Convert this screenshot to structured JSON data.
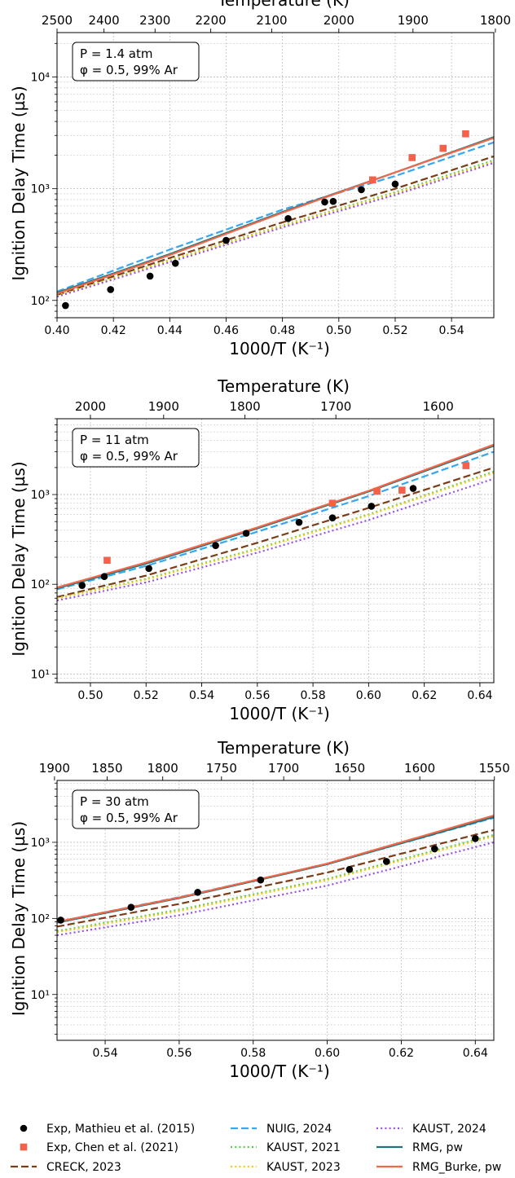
{
  "legend": {
    "placement": "bottom",
    "entries": [
      {
        "label": "Exp, Mathieu et al. (2015)",
        "color": "#000000",
        "style": "circle"
      },
      {
        "label": "Exp, Chen et al. (2021)",
        "color": "#f4614a",
        "style": "square"
      },
      {
        "label": "CRECK, 2023",
        "color": "#7a3d17",
        "style": "dashed"
      },
      {
        "label": "NUIG, 2024",
        "color": "#37a7ee",
        "style": "dashed"
      },
      {
        "label": "KAUST, 2021",
        "color": "#52cc4f",
        "style": "dotted"
      },
      {
        "label": "KAUST, 2023",
        "color": "#f2c90f",
        "style": "dotted"
      },
      {
        "label": "KAUST, 2024",
        "color": "#9a4fe0",
        "style": "dotted"
      },
      {
        "label": "RMG, pw",
        "color": "#1f7479",
        "style": "solid"
      },
      {
        "label": "RMG_Burke, pw",
        "color": "#f0674a",
        "style": "solid"
      }
    ]
  },
  "chart_data": [
    {
      "type": "scatter",
      "annotation": [
        "P = 1.4 atm",
        "φ = 0.5, 99% Ar"
      ],
      "xlabel": "1000/T (K⁻¹)",
      "ylabel": "Ignition Delay Time (µs)",
      "top_xlabel": "Temperature (K)",
      "yscale": "log",
      "grid": true,
      "xlim": [
        0.4,
        0.555
      ],
      "ylim": [
        70,
        25000
      ],
      "xticks": [
        0.4,
        0.42,
        0.44,
        0.46,
        0.48,
        0.5,
        0.52,
        0.54
      ],
      "xticklabels": [
        "0.40",
        "0.42",
        "0.44",
        "0.46",
        "0.48",
        "0.50",
        "0.52",
        "0.54"
      ],
      "yticks": [
        100,
        1000,
        10000
      ],
      "yticklabels": [
        "10²",
        "10³",
        "10⁴"
      ],
      "top_ticks": [
        2500,
        2400,
        2300,
        2200,
        2100,
        2000,
        1900,
        1800
      ],
      "series": [
        {
          "name": "Exp, Mathieu et al. (2015)",
          "kind": "marker",
          "marker": "circle",
          "color": "#000000",
          "x": [
            0.403,
            0.419,
            0.433,
            0.442,
            0.46,
            0.482,
            0.495,
            0.498,
            0.508,
            0.52
          ],
          "y": [
            90,
            125,
            165,
            215,
            345,
            540,
            760,
            770,
            980,
            1100
          ]
        },
        {
          "name": "Exp, Chen et al. (2021)",
          "kind": "marker",
          "marker": "square",
          "color": "#f4614a",
          "x": [
            0.512,
            0.526,
            0.537,
            0.545
          ],
          "y": [
            1200,
            1900,
            2300,
            3100
          ]
        },
        {
          "name": "CRECK, 2023",
          "kind": "line",
          "dash": "dashed",
          "color": "#7a3d17",
          "x": [
            0.4,
            0.44,
            0.48,
            0.52,
            0.555
          ],
          "y": [
            112,
            240,
            500,
            1000,
            1950
          ]
        },
        {
          "name": "NUIG, 2024",
          "kind": "line",
          "dash": "dashed",
          "color": "#37a7ee",
          "x": [
            0.4,
            0.44,
            0.48,
            0.52,
            0.555
          ],
          "y": [
            120,
            285,
            650,
            1300,
            2600
          ]
        },
        {
          "name": "KAUST, 2021",
          "kind": "line",
          "dash": "dotted",
          "color": "#52cc4f",
          "x": [
            0.4,
            0.44,
            0.48,
            0.52,
            0.555
          ],
          "y": [
            110,
            230,
            470,
            930,
            1800
          ]
        },
        {
          "name": "KAUST, 2023",
          "kind": "line",
          "dash": "dotted",
          "color": "#f2c90f",
          "x": [
            0.4,
            0.44,
            0.48,
            0.52,
            0.555
          ],
          "y": [
            110,
            228,
            465,
            910,
            1750
          ]
        },
        {
          "name": "KAUST, 2024",
          "kind": "line",
          "dash": "dotted",
          "color": "#9a4fe0",
          "x": [
            0.4,
            0.44,
            0.48,
            0.52,
            0.555
          ],
          "y": [
            108,
            220,
            450,
            880,
            1700
          ]
        },
        {
          "name": "RMG, pw",
          "kind": "line",
          "dash": "solid",
          "color": "#1f7479",
          "x": [
            0.4,
            0.44,
            0.48,
            0.52,
            0.555
          ],
          "y": [
            117,
            260,
            620,
            1400,
            2900
          ]
        },
        {
          "name": "RMG_Burke, pw",
          "kind": "line",
          "dash": "solid",
          "color": "#f0674a",
          "x": [
            0.4,
            0.44,
            0.48,
            0.52,
            0.555
          ],
          "y": [
            115,
            255,
            610,
            1400,
            2850
          ]
        }
      ]
    },
    {
      "type": "scatter",
      "annotation": [
        "P = 11 atm",
        "φ = 0.5, 99% Ar"
      ],
      "xlabel": "1000/T (K⁻¹)",
      "ylabel": "Ignition Delay Time (µs)",
      "top_xlabel": "Temperature (K)",
      "yscale": "log",
      "grid": true,
      "xlim": [
        0.488,
        0.645
      ],
      "ylim": [
        8,
        7000
      ],
      "xticks": [
        0.5,
        0.52,
        0.54,
        0.56,
        0.58,
        0.6,
        0.62,
        0.64
      ],
      "xticklabels": [
        "0.50",
        "0.52",
        "0.54",
        "0.56",
        "0.58",
        "0.60",
        "0.62",
        "0.64"
      ],
      "yticks": [
        10,
        100,
        1000
      ],
      "yticklabels": [
        "10¹",
        "10²",
        "10³"
      ],
      "top_ticks": [
        2000,
        1900,
        1800,
        1700,
        1600
      ],
      "series": [
        {
          "name": "Exp, Mathieu et al. (2015)",
          "kind": "marker",
          "marker": "circle",
          "color": "#000000",
          "x": [
            0.497,
            0.505,
            0.521,
            0.545,
            0.556,
            0.575,
            0.587,
            0.601,
            0.616
          ],
          "y": [
            97,
            122,
            150,
            270,
            370,
            490,
            550,
            740,
            1170
          ]
        },
        {
          "name": "Exp, Chen et al. (2021)",
          "kind": "marker",
          "marker": "square",
          "color": "#f4614a",
          "x": [
            0.506,
            0.587,
            0.603,
            0.612,
            0.635
          ],
          "y": [
            185,
            800,
            1090,
            1120,
            2100
          ]
        },
        {
          "name": "CRECK, 2023",
          "kind": "line",
          "dash": "dashed",
          "color": "#7a3d17",
          "x": [
            0.488,
            0.52,
            0.56,
            0.6,
            0.645
          ],
          "y": [
            72,
            125,
            290,
            710,
            2000
          ]
        },
        {
          "name": "NUIG, 2024",
          "kind": "line",
          "dash": "dashed",
          "color": "#37a7ee",
          "x": [
            0.488,
            0.52,
            0.56,
            0.6,
            0.645
          ],
          "y": [
            88,
            160,
            385,
            960,
            3000
          ]
        },
        {
          "name": "KAUST, 2021",
          "kind": "line",
          "dash": "dotted",
          "color": "#52cc4f",
          "x": [
            0.488,
            0.52,
            0.56,
            0.6,
            0.645
          ],
          "y": [
            70,
            115,
            250,
            600,
            1800
          ]
        },
        {
          "name": "KAUST, 2023",
          "kind": "line",
          "dash": "dotted",
          "color": "#f2c90f",
          "x": [
            0.488,
            0.52,
            0.56,
            0.6,
            0.645
          ],
          "y": [
            70,
            113,
            245,
            590,
            1750
          ]
        },
        {
          "name": "KAUST, 2024",
          "kind": "line",
          "dash": "dotted",
          "color": "#9a4fe0",
          "x": [
            0.488,
            0.52,
            0.56,
            0.6,
            0.645
          ],
          "y": [
            66,
            105,
            225,
            520,
            1500
          ]
        },
        {
          "name": "RMG, pw",
          "kind": "line",
          "dash": "solid",
          "color": "#1f7479",
          "x": [
            0.488,
            0.52,
            0.56,
            0.6,
            0.645
          ],
          "y": [
            90,
            170,
            420,
            1080,
            3500
          ]
        },
        {
          "name": "RMG_Burke, pw",
          "kind": "line",
          "dash": "solid",
          "color": "#f0674a",
          "x": [
            0.488,
            0.52,
            0.56,
            0.6,
            0.645
          ],
          "y": [
            92,
            175,
            430,
            1100,
            3600
          ]
        }
      ]
    },
    {
      "type": "scatter",
      "annotation": [
        "P = 30 atm",
        "φ = 0.5, 99% Ar"
      ],
      "xlabel": "1000/T (K⁻¹)",
      "ylabel": "Ignition Delay Time (µs)",
      "top_xlabel": "Temperature (K)",
      "yscale": "log",
      "grid": true,
      "xlim": [
        0.527,
        0.645
      ],
      "ylim": [
        2.5,
        6500
      ],
      "xticks": [
        0.54,
        0.56,
        0.58,
        0.6,
        0.62,
        0.64
      ],
      "xticklabels": [
        "0.54",
        "0.56",
        "0.58",
        "0.60",
        "0.62",
        "0.64"
      ],
      "yticks": [
        10,
        100,
        1000
      ],
      "yticklabels": [
        "10¹",
        "10²",
        "10³"
      ],
      "top_ticks": [
        1900,
        1850,
        1800,
        1750,
        1700,
        1650,
        1600,
        1550
      ],
      "series": [
        {
          "name": "Exp, Mathieu et al. (2015)",
          "kind": "marker",
          "marker": "circle",
          "color": "#000000",
          "x": [
            0.528,
            0.547,
            0.565,
            0.582,
            0.606,
            0.616,
            0.629,
            0.64
          ],
          "y": [
            95,
            140,
            220,
            320,
            440,
            560,
            820,
            1120
          ]
        },
        {
          "name": "CRECK, 2023",
          "kind": "line",
          "dash": "dashed",
          "color": "#7a3d17",
          "x": [
            0.527,
            0.56,
            0.6,
            0.645
          ],
          "y": [
            78,
            155,
            400,
            1450
          ]
        },
        {
          "name": "NUIG, 2024",
          "kind": "line",
          "dash": "dashed",
          "color": "#37a7ee",
          "x": [
            0.527,
            0.56,
            0.6,
            0.645
          ],
          "y": [
            90,
            190,
            520,
            2100
          ]
        },
        {
          "name": "KAUST, 2021",
          "kind": "line",
          "dash": "dotted",
          "color": "#52cc4f",
          "x": [
            0.527,
            0.56,
            0.6,
            0.645
          ],
          "y": [
            68,
            130,
            330,
            1250
          ]
        },
        {
          "name": "KAUST, 2023",
          "kind": "line",
          "dash": "dotted",
          "color": "#f2c90f",
          "x": [
            0.527,
            0.56,
            0.6,
            0.645
          ],
          "y": [
            66,
            125,
            320,
            1200
          ]
        },
        {
          "name": "KAUST, 2024",
          "kind": "line",
          "dash": "dotted",
          "color": "#9a4fe0",
          "x": [
            0.527,
            0.56,
            0.6,
            0.645
          ],
          "y": [
            60,
            110,
            270,
            1000
          ]
        },
        {
          "name": "RMG, pw",
          "kind": "line",
          "dash": "solid",
          "color": "#1f7479",
          "x": [
            0.527,
            0.56,
            0.6,
            0.645
          ],
          "y": [
            88,
            185,
            515,
            2150
          ]
        },
        {
          "name": "RMG_Burke, pw",
          "kind": "line",
          "dash": "solid",
          "color": "#f0674a",
          "x": [
            0.527,
            0.56,
            0.6,
            0.645
          ],
          "y": [
            90,
            188,
            525,
            2250
          ]
        }
      ]
    }
  ]
}
